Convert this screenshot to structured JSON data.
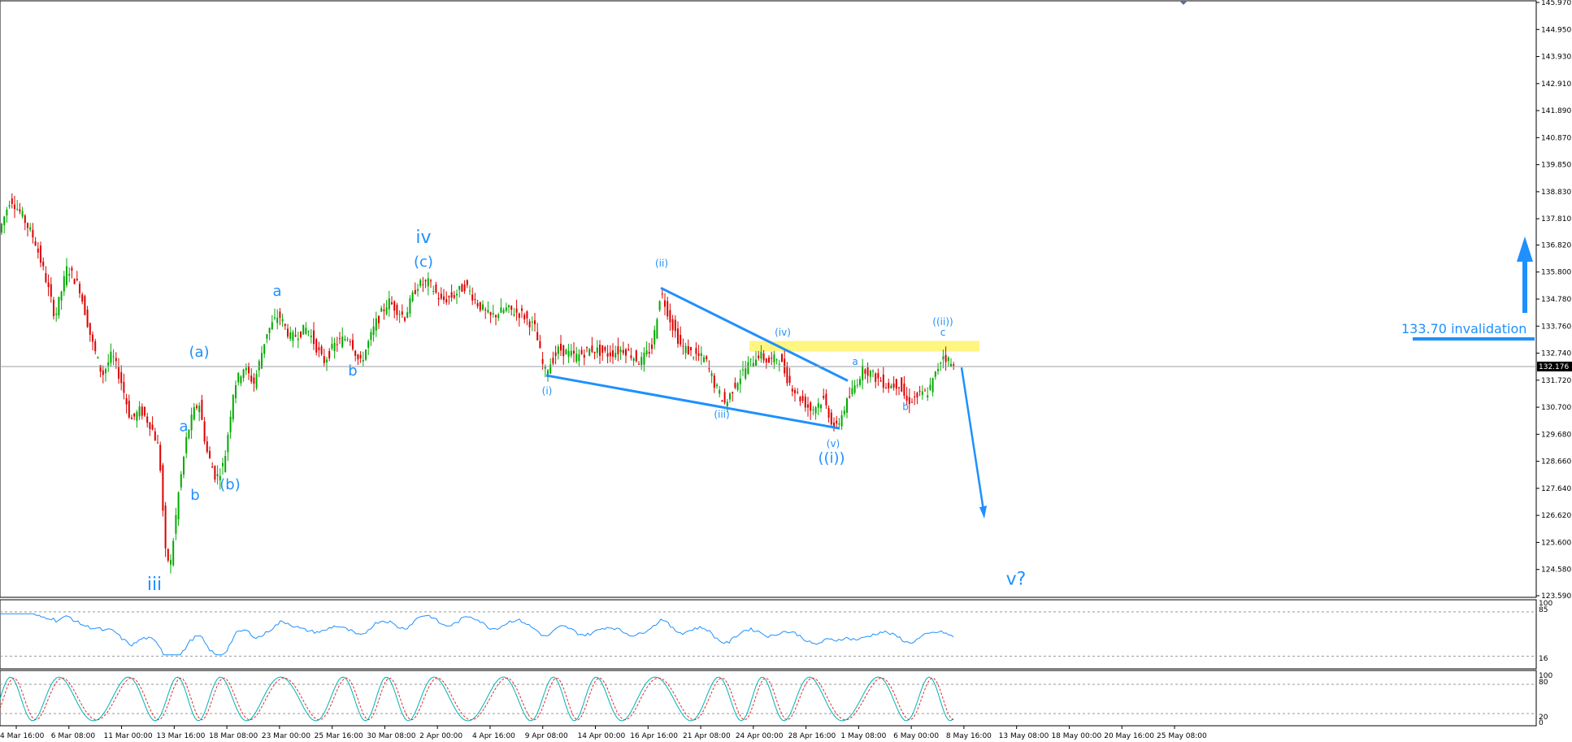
{
  "chart_data": [
    {
      "type": "candlestick",
      "panel": "price",
      "last_price": "132.176",
      "y_ticks": [
        "145.970",
        "144.950",
        "143.930",
        "142.910",
        "141.890",
        "140.870",
        "139.850",
        "138.830",
        "137.810",
        "136.820",
        "135.800",
        "134.780",
        "133.760",
        "132.740",
        "131.720",
        "130.700",
        "129.680",
        "128.660",
        "127.640",
        "126.620",
        "125.600",
        "124.580",
        "123.590"
      ],
      "x_ticks": [
        "4 Mar 16:00",
        "6 Mar 08:00",
        "11 Mar 00:00",
        "13 Mar 16:00",
        "18 Mar 08:00",
        "23 Mar 00:00",
        "25 Mar 16:00",
        "30 Mar 08:00",
        "2 Apr 00:00",
        "4 Apr 16:00",
        "9 Apr 08:00",
        "14 Apr 00:00",
        "16 Apr 16:00",
        "21 Apr 08:00",
        "24 Apr 00:00",
        "28 Apr 16:00",
        "1 May 08:00",
        "6 May 00:00",
        "8 May 16:00",
        "13 May 08:00",
        "18 May 00:00",
        "20 May 16:00",
        "25 May 08:00"
      ],
      "ylim": [
        123.59,
        145.97
      ],
      "path_points": [
        {
          "x": 0,
          "y": 137.2
        },
        {
          "x": 15,
          "y": 138.6
        },
        {
          "x": 30,
          "y": 137.9
        },
        {
          "x": 45,
          "y": 137.0
        },
        {
          "x": 58,
          "y": 135.6
        },
        {
          "x": 70,
          "y": 134.1
        },
        {
          "x": 85,
          "y": 136.0
        },
        {
          "x": 100,
          "y": 135.2
        },
        {
          "x": 115,
          "y": 133.2
        },
        {
          "x": 128,
          "y": 131.9
        },
        {
          "x": 140,
          "y": 132.7
        },
        {
          "x": 152,
          "y": 131.6
        },
        {
          "x": 163,
          "y": 130.2
        },
        {
          "x": 175,
          "y": 130.6
        },
        {
          "x": 188,
          "y": 130.0
        },
        {
          "x": 198,
          "y": 129.1
        },
        {
          "x": 206,
          "y": 125.1
        },
        {
          "x": 212,
          "y": 124.8
        },
        {
          "x": 222,
          "y": 127.5
        },
        {
          "x": 232,
          "y": 129.6
        },
        {
          "x": 240,
          "y": 130.5
        },
        {
          "x": 247,
          "y": 130.9
        },
        {
          "x": 256,
          "y": 129.1
        },
        {
          "x": 268,
          "y": 128.0
        },
        {
          "x": 278,
          "y": 128.6
        },
        {
          "x": 290,
          "y": 131.5
        },
        {
          "x": 302,
          "y": 132.2
        },
        {
          "x": 315,
          "y": 131.6
        },
        {
          "x": 330,
          "y": 133.5
        },
        {
          "x": 345,
          "y": 134.2
        },
        {
          "x": 360,
          "y": 133.3
        },
        {
          "x": 380,
          "y": 133.7
        },
        {
          "x": 400,
          "y": 132.4
        },
        {
          "x": 415,
          "y": 133.1
        },
        {
          "x": 432,
          "y": 133.4
        },
        {
          "x": 445,
          "y": 132.3
        },
        {
          "x": 465,
          "y": 133.9
        },
        {
          "x": 480,
          "y": 134.7
        },
        {
          "x": 500,
          "y": 134.1
        },
        {
          "x": 515,
          "y": 135.3
        },
        {
          "x": 530,
          "y": 135.4
        },
        {
          "x": 545,
          "y": 134.7
        },
        {
          "x": 560,
          "y": 134.9
        },
        {
          "x": 575,
          "y": 135.3
        },
        {
          "x": 590,
          "y": 134.6
        },
        {
          "x": 605,
          "y": 134.1
        },
        {
          "x": 625,
          "y": 134.4
        },
        {
          "x": 645,
          "y": 134.2
        },
        {
          "x": 660,
          "y": 133.7
        },
        {
          "x": 672,
          "y": 132.0
        },
        {
          "x": 690,
          "y": 132.9
        },
        {
          "x": 710,
          "y": 132.6
        },
        {
          "x": 730,
          "y": 132.9
        },
        {
          "x": 750,
          "y": 132.7
        },
        {
          "x": 770,
          "y": 132.9
        },
        {
          "x": 790,
          "y": 132.4
        },
        {
          "x": 805,
          "y": 133.0
        },
        {
          "x": 815,
          "y": 135.1
        },
        {
          "x": 828,
          "y": 133.9
        },
        {
          "x": 840,
          "y": 133.0
        },
        {
          "x": 855,
          "y": 132.7
        },
        {
          "x": 870,
          "y": 132.5
        },
        {
          "x": 882,
          "y": 131.5
        },
        {
          "x": 895,
          "y": 130.8
        },
        {
          "x": 905,
          "y": 131.5
        },
        {
          "x": 920,
          "y": 132.2
        },
        {
          "x": 935,
          "y": 132.7
        },
        {
          "x": 948,
          "y": 132.4
        },
        {
          "x": 960,
          "y": 132.6
        },
        {
          "x": 972,
          "y": 131.7
        },
        {
          "x": 985,
          "y": 131.1
        },
        {
          "x": 1000,
          "y": 130.6
        },
        {
          "x": 1015,
          "y": 131.0
        },
        {
          "x": 1030,
          "y": 129.8
        },
        {
          "x": 1040,
          "y": 130.6
        },
        {
          "x": 1052,
          "y": 131.4
        },
        {
          "x": 1065,
          "y": 132.2
        },
        {
          "x": 1080,
          "y": 131.8
        },
        {
          "x": 1095,
          "y": 131.5
        },
        {
          "x": 1108,
          "y": 131.6
        },
        {
          "x": 1118,
          "y": 130.9
        },
        {
          "x": 1130,
          "y": 131.1
        },
        {
          "x": 1145,
          "y": 131.3
        },
        {
          "x": 1155,
          "y": 132.1
        },
        {
          "x": 1162,
          "y": 132.7
        },
        {
          "x": 1168,
          "y": 132.5
        },
        {
          "x": 1175,
          "y": 132.2
        }
      ],
      "annotations": [
        {
          "text": "iii",
          "x": 190,
          "y": 123.8,
          "size": "large"
        },
        {
          "text": "a",
          "x": 226,
          "y": 129.8,
          "size": "medium"
        },
        {
          "text": "b",
          "x": 240,
          "y": 127.2,
          "size": "medium"
        },
        {
          "text": "(a)",
          "x": 245,
          "y": 132.6,
          "size": "medium"
        },
        {
          "text": "(b)",
          "x": 283,
          "y": 127.6,
          "size": "medium"
        },
        {
          "text": "a",
          "x": 341,
          "y": 134.9,
          "size": "medium"
        },
        {
          "text": "b",
          "x": 434,
          "y": 131.9,
          "size": "medium"
        },
        {
          "text": "iv",
          "x": 521,
          "y": 136.9,
          "size": "large"
        },
        {
          "text": "(c)",
          "x": 521,
          "y": 136.0,
          "size": "medium"
        },
        {
          "text": "(i)",
          "x": 673,
          "y": 131.2,
          "size": "small"
        },
        {
          "text": "(ii)",
          "x": 814,
          "y": 136.0,
          "size": "small"
        },
        {
          "text": "(iii)",
          "x": 888,
          "y": 130.3,
          "size": "small"
        },
        {
          "text": "(iv)",
          "x": 963,
          "y": 133.4,
          "size": "small"
        },
        {
          "text": "(v)",
          "x": 1025,
          "y": 129.2,
          "size": "small"
        },
        {
          "text": "((i))",
          "x": 1023,
          "y": 128.6,
          "size": "medium"
        },
        {
          "text": "a",
          "x": 1052,
          "y": 132.3,
          "size": "small"
        },
        {
          "text": "b",
          "x": 1114,
          "y": 130.6,
          "size": "small"
        },
        {
          "text": "((ii))",
          "x": 1160,
          "y": 133.8,
          "size": "small"
        },
        {
          "text": "c",
          "x": 1160,
          "y": 133.4,
          "size": "small"
        },
        {
          "text": "v?",
          "x": 1250,
          "y": 124.0,
          "size": "large"
        }
      ],
      "trendlines": [
        {
          "from": {
            "x": 672,
            "y": 131.9
          },
          "to": {
            "x": 1033,
            "y": 129.9
          }
        },
        {
          "from": {
            "x": 813,
            "y": 135.2
          },
          "to": {
            "x": 1043,
            "y": 131.7
          }
        }
      ],
      "resistance_zone": {
        "y_low": 132.8,
        "y_high": 133.2,
        "x_from": 922,
        "x_to": 1205
      },
      "forecast_arrow": {
        "from": {
          "x": 1183,
          "y": 132.2
        },
        "to": {
          "x": 1210,
          "y": 126.5
        }
      },
      "invalidation": {
        "label": "133.70 invalidation",
        "price": 133.7
      },
      "up_arrow": {
        "x": 1520,
        "from_price": 133.8,
        "to_price": 137.0
      }
    },
    {
      "type": "line",
      "panel": "rsi",
      "levels": {
        "top": "100",
        "upper": "85",
        "lower": "16"
      },
      "color": "#1e90ff"
    },
    {
      "type": "line",
      "panel": "stochastic",
      "levels": {
        "top": "100",
        "upper": "80",
        "lower": "20",
        "bottom": "0"
      },
      "series": [
        {
          "color": "#00b3b3"
        },
        {
          "color": "#e03030"
        }
      ]
    }
  ],
  "colors": {
    "bull": "#00aa00",
    "bear": "#dd0000",
    "annotation": "#1e90ff",
    "zone": "#fff36b",
    "grid": "#bdbdbd"
  }
}
